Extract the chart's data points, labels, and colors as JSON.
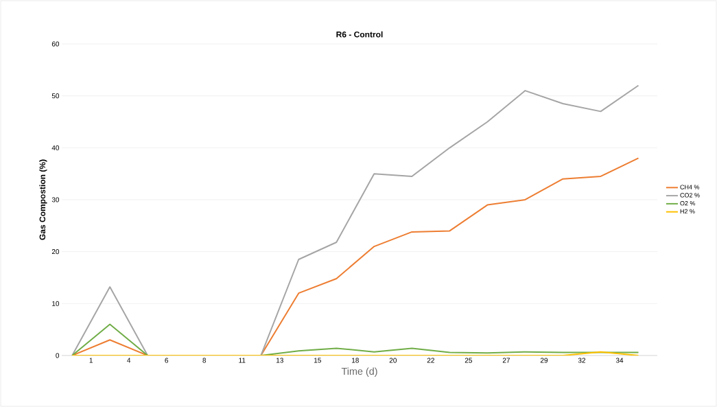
{
  "chart_data": {
    "type": "line",
    "title": "R6 - Control",
    "xlabel": "Time (d)",
    "ylabel": "Gas Compostion (%)",
    "categories": [
      null,
      "1",
      null,
      "4",
      null,
      "6",
      null,
      "8",
      null,
      "11",
      null,
      "13",
      null,
      "15",
      null,
      "18",
      null,
      "20",
      null,
      "22",
      null,
      "25",
      null,
      "27",
      null,
      "29",
      null,
      "32",
      null,
      "34",
      null
    ],
    "series": [
      {
        "name": "CH4 %",
        "color": "#ed7d31",
        "values": [
          0,
          null,
          3,
          null,
          0,
          null,
          0,
          null,
          0,
          null,
          0,
          null,
          12,
          null,
          14.8,
          null,
          21,
          null,
          23.8,
          null,
          24,
          null,
          29,
          null,
          30,
          null,
          34,
          null,
          34.5,
          null,
          38
        ]
      },
      {
        "name": "CO2 %",
        "color": "#a5a5a5",
        "values": [
          0,
          null,
          13.2,
          null,
          0,
          null,
          0,
          null,
          0,
          null,
          0,
          null,
          18.5,
          null,
          21.8,
          null,
          35,
          null,
          34.5,
          null,
          40,
          null,
          45,
          null,
          51,
          null,
          48.5,
          null,
          47,
          null,
          52
        ]
      },
      {
        "name": "O2 %",
        "color": "#70ad47",
        "values": [
          0,
          null,
          6,
          null,
          0,
          null,
          0,
          null,
          0,
          null,
          0,
          null,
          0.9,
          null,
          1.4,
          null,
          0.7,
          null,
          1.4,
          null,
          0.6,
          null,
          0.5,
          null,
          0.7,
          null,
          0.6,
          null,
          0.6,
          null,
          0.6
        ]
      },
      {
        "name": "H2 %",
        "color": "#ffc000",
        "values": [
          0,
          null,
          0,
          null,
          0,
          null,
          0,
          null,
          0,
          null,
          0,
          null,
          0,
          null,
          0,
          null,
          0,
          null,
          0,
          null,
          0,
          null,
          0,
          null,
          0,
          null,
          0,
          null,
          0.7,
          null,
          0
        ]
      }
    ],
    "ylim": [
      0,
      60
    ],
    "yticks": [
      0,
      10,
      20,
      30,
      40,
      50,
      60
    ],
    "grid": "y",
    "legend": "right",
    "marker": "none",
    "line_style": "solid"
  }
}
